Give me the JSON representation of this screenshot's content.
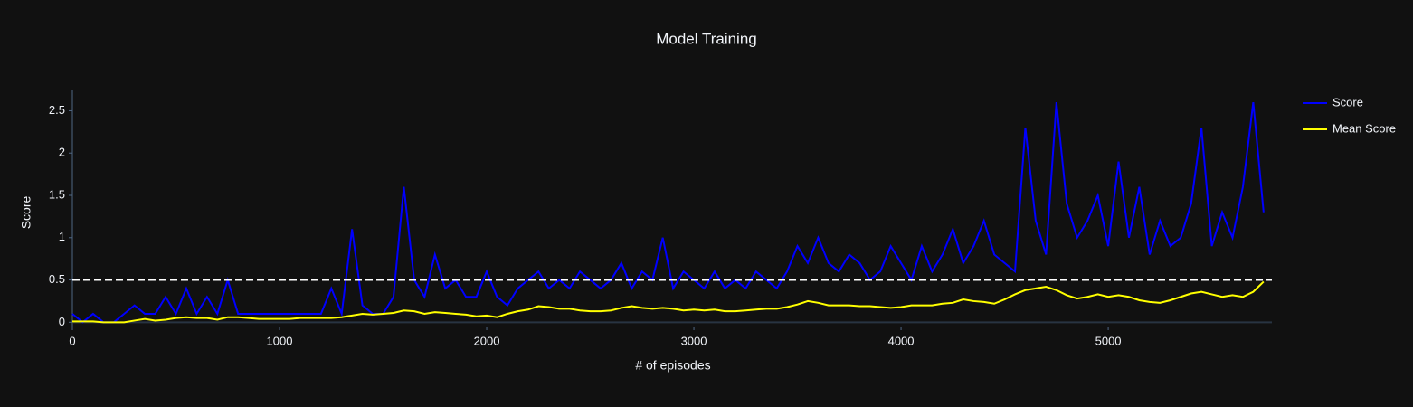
{
  "chart_data": {
    "type": "line",
    "title": "Model Training",
    "xlabel": "# of episodes",
    "ylabel": "Score",
    "x": [
      0,
      50,
      100,
      150,
      200,
      250,
      300,
      350,
      400,
      450,
      500,
      550,
      600,
      650,
      700,
      750,
      800,
      850,
      900,
      950,
      1000,
      1050,
      1100,
      1150,
      1200,
      1250,
      1300,
      1350,
      1400,
      1450,
      1500,
      1550,
      1600,
      1650,
      1700,
      1750,
      1800,
      1850,
      1900,
      1950,
      2000,
      2050,
      2100,
      2150,
      2200,
      2250,
      2300,
      2350,
      2400,
      2450,
      2500,
      2550,
      2600,
      2650,
      2700,
      2750,
      2800,
      2850,
      2900,
      2950,
      3000,
      3050,
      3100,
      3150,
      3200,
      3250,
      3300,
      3350,
      3400,
      3450,
      3500,
      3550,
      3600,
      3650,
      3700,
      3750,
      3800,
      3850,
      3900,
      3950,
      4000,
      4050,
      4100,
      4150,
      4200,
      4250,
      4300,
      4350,
      4400,
      4450,
      4500,
      4550,
      4600,
      4650,
      4700,
      4750,
      4800,
      4850,
      4900,
      4950,
      5000,
      5050,
      5100,
      5150,
      5200,
      5250,
      5300,
      5350,
      5400,
      5450,
      5500,
      5550,
      5600,
      5650,
      5700,
      5750
    ],
    "series": [
      {
        "name": "Score",
        "color": "#0000ff",
        "values": [
          0.1,
          0,
          0.1,
          0,
          0,
          0.1,
          0.2,
          0.1,
          0.1,
          0.3,
          0.1,
          0.4,
          0.1,
          0.3,
          0.1,
          0.5,
          0.1,
          0.1,
          0.1,
          0.1,
          0.1,
          0.1,
          0.1,
          0.1,
          0.1,
          0.4,
          0.1,
          1.1,
          0.2,
          0.1,
          0.1,
          0.3,
          1.6,
          0.5,
          0.3,
          0.8,
          0.4,
          0.5,
          0.3,
          0.3,
          0.6,
          0.3,
          0.2,
          0.4,
          0.5,
          0.6,
          0.4,
          0.5,
          0.4,
          0.6,
          0.5,
          0.4,
          0.5,
          0.7,
          0.4,
          0.6,
          0.5,
          1.0,
          0.4,
          0.6,
          0.5,
          0.4,
          0.6,
          0.4,
          0.5,
          0.4,
          0.6,
          0.5,
          0.4,
          0.6,
          0.9,
          0.7,
          1.0,
          0.7,
          0.6,
          0.8,
          0.7,
          0.5,
          0.6,
          0.9,
          0.7,
          0.5,
          0.9,
          0.6,
          0.8,
          1.1,
          0.7,
          0.9,
          1.2,
          0.8,
          0.7,
          0.6,
          2.3,
          1.2,
          0.8,
          2.6,
          1.4,
          1.0,
          1.2,
          1.5,
          0.9,
          1.9,
          1.0,
          1.6,
          0.8,
          1.2,
          0.9,
          1.0,
          1.4,
          2.3,
          0.9,
          1.3,
          1.0,
          1.6,
          2.6,
          1.3
        ]
      },
      {
        "name": "Mean Score",
        "color": "#ffff00",
        "values": [
          0.01,
          0.01,
          0.01,
          0,
          0,
          0,
          0.02,
          0.04,
          0.02,
          0.03,
          0.05,
          0.06,
          0.05,
          0.05,
          0.03,
          0.06,
          0.06,
          0.05,
          0.04,
          0.04,
          0.04,
          0.04,
          0.05,
          0.05,
          0.05,
          0.05,
          0.06,
          0.08,
          0.1,
          0.09,
          0.1,
          0.11,
          0.14,
          0.13,
          0.1,
          0.12,
          0.11,
          0.1,
          0.09,
          0.07,
          0.08,
          0.06,
          0.1,
          0.13,
          0.15,
          0.19,
          0.18,
          0.16,
          0.16,
          0.14,
          0.13,
          0.13,
          0.14,
          0.17,
          0.19,
          0.17,
          0.16,
          0.17,
          0.16,
          0.14,
          0.15,
          0.14,
          0.15,
          0.13,
          0.13,
          0.14,
          0.15,
          0.16,
          0.16,
          0.18,
          0.21,
          0.25,
          0.23,
          0.2,
          0.2,
          0.2,
          0.19,
          0.19,
          0.18,
          0.17,
          0.18,
          0.2,
          0.2,
          0.2,
          0.22,
          0.23,
          0.27,
          0.25,
          0.24,
          0.22,
          0.27,
          0.33,
          0.38,
          0.4,
          0.42,
          0.38,
          0.32,
          0.28,
          0.3,
          0.33,
          0.3,
          0.32,
          0.3,
          0.26,
          0.24,
          0.23,
          0.26,
          0.3,
          0.34,
          0.36,
          0.33,
          0.3,
          0.32,
          0.3,
          0.36,
          0.48
        ]
      }
    ],
    "hline": {
      "value": 0.5,
      "color": "#ffffff"
    },
    "xlim": [
      0,
      5790
    ],
    "ylim": [
      -0.05,
      2.74
    ],
    "xticks": [
      0,
      1000,
      2000,
      3000,
      4000,
      5000
    ],
    "yticks": [
      0,
      0.5,
      1,
      1.5,
      2,
      2.5
    ],
    "legend": "right"
  }
}
